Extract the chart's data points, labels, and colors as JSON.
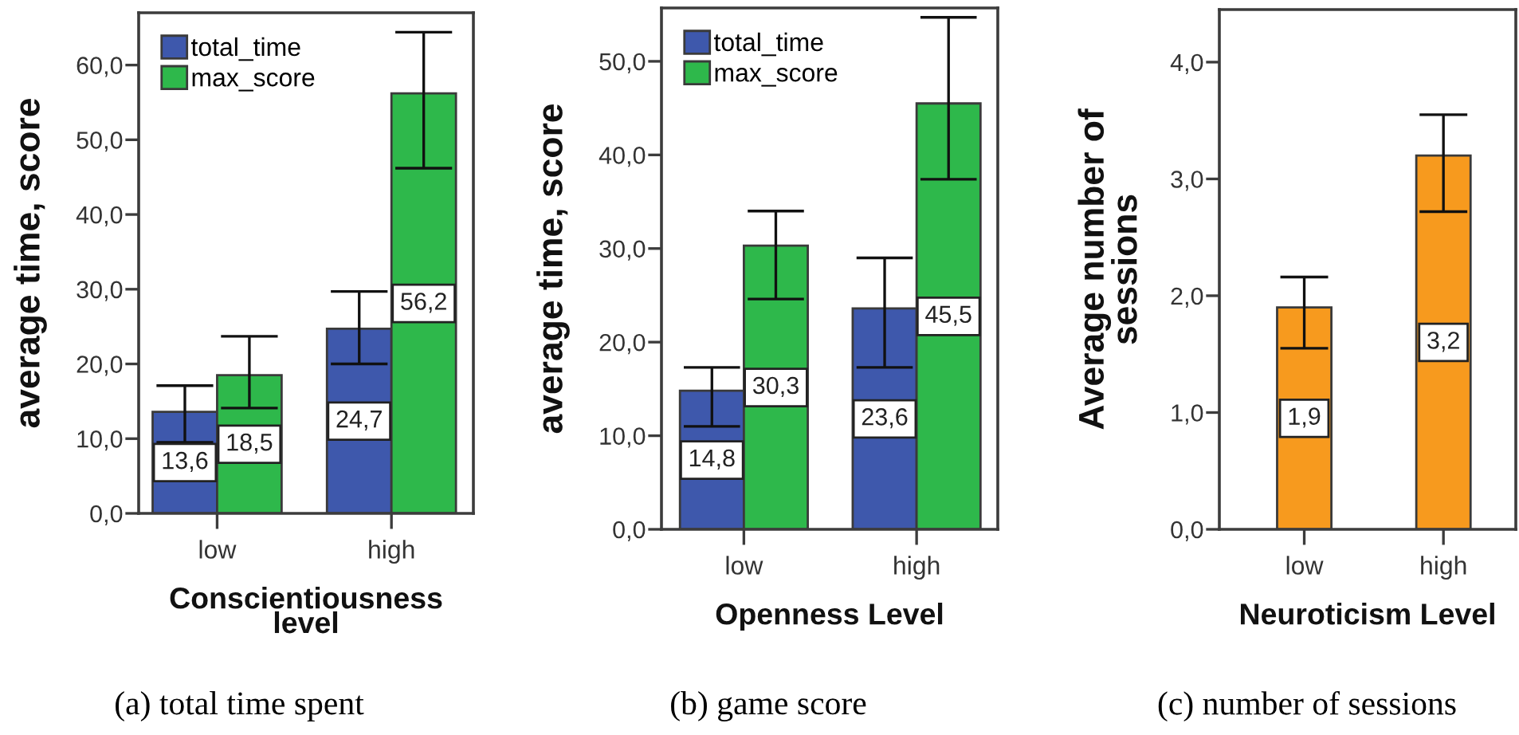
{
  "chart_data": [
    {
      "type": "bar",
      "categories": [
        "low",
        "high"
      ],
      "series": [
        {
          "name": "total_time",
          "color": "#3e58ac",
          "values": [
            13.6,
            24.7
          ],
          "errors": [
            [
              9.5,
              17.1
            ],
            [
              20.0,
              29.7
            ]
          ],
          "value_labels": [
            "13,6",
            "24,7"
          ]
        },
        {
          "name": "max_score",
          "color": "#2eb84b",
          "values": [
            18.5,
            56.2
          ],
          "errors": [
            [
              14.1,
              23.7
            ],
            [
              46.2,
              64.4
            ]
          ],
          "value_labels": [
            "18,5",
            "56,2"
          ]
        }
      ],
      "xlabel": "Conscientiousness\nlevel",
      "ylabel": "average time, score",
      "ylim": [
        0,
        67
      ],
      "yticks": [
        {
          "value": 0,
          "label": "0,0"
        },
        {
          "value": 10,
          "label": "10,0"
        },
        {
          "value": 20,
          "label": "20,0"
        },
        {
          "value": 30,
          "label": "30,0"
        },
        {
          "value": 40,
          "label": "40,0"
        },
        {
          "value": 50,
          "label": "50,0"
        },
        {
          "value": 60,
          "label": "60,0"
        }
      ],
      "legend": "top left",
      "annotations": [
        "(a) total time spent"
      ]
    },
    {
      "type": "bar",
      "categories": [
        "low",
        "high"
      ],
      "series": [
        {
          "name": "total_time",
          "color": "#3e58ac",
          "values": [
            14.8,
            23.6
          ],
          "errors": [
            [
              11.0,
              17.3
            ],
            [
              17.3,
              29.0
            ]
          ],
          "value_labels": [
            "14,8",
            "23,6"
          ]
        },
        {
          "name": "max_score",
          "color": "#2eb84b",
          "values": [
            30.3,
            45.5
          ],
          "errors": [
            [
              24.6,
              34.0
            ],
            [
              37.4,
              54.7
            ]
          ],
          "value_labels": [
            "30,3",
            "45,5"
          ]
        }
      ],
      "xlabel": "Openness Level",
      "ylabel": "average time, score",
      "ylim": [
        0,
        55.7
      ],
      "yticks": [
        {
          "value": 0,
          "label": "0,0"
        },
        {
          "value": 10,
          "label": "10,0"
        },
        {
          "value": 20,
          "label": "20,0"
        },
        {
          "value": 30,
          "label": "30,0"
        },
        {
          "value": 40,
          "label": "40,0"
        },
        {
          "value": 50,
          "label": "50,0"
        }
      ],
      "legend": "top left",
      "annotations": [
        "(b) game score"
      ]
    },
    {
      "type": "bar",
      "categories": [
        "low",
        "high"
      ],
      "series": [
        {
          "color": "#f79a1e",
          "values": [
            1.9,
            3.2
          ],
          "errors": [
            [
              1.55,
              2.16
            ],
            [
              2.72,
              3.55
            ]
          ],
          "value_labels": [
            "1,9",
            "3,2"
          ]
        }
      ],
      "xlabel": "Neuroticism Level",
      "ylabel": "Average number of\nsessions",
      "ylim": [
        0,
        4.45
      ],
      "yticks": [
        {
          "value": 0,
          "label": "0,0"
        },
        {
          "value": 1,
          "label": "1,0"
        },
        {
          "value": 2,
          "label": "2,0"
        },
        {
          "value": 3,
          "label": "3,0"
        },
        {
          "value": 4,
          "label": "4,0"
        }
      ],
      "annotations": [
        "(c) number of sessions"
      ]
    }
  ]
}
